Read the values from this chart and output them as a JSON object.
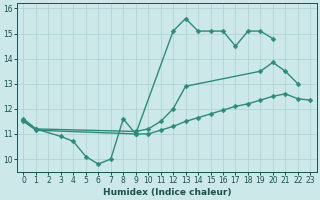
{
  "xlabel": "Humidex (Indice chaleur)",
  "line_color": "#2e8b7a",
  "bg_color": "#cce8e8",
  "grid_color": "#aad0d0",
  "ylim": [
    9.5,
    16.2
  ],
  "xlim": [
    -0.5,
    23.5
  ],
  "yticks": [
    10,
    11,
    12,
    13,
    14,
    15,
    16
  ],
  "xticks": [
    0,
    1,
    2,
    3,
    4,
    5,
    6,
    7,
    8,
    9,
    10,
    11,
    12,
    13,
    14,
    15,
    16,
    17,
    18,
    19,
    20,
    21,
    22,
    23
  ],
  "markersize": 2.5,
  "linewidth": 1.0,
  "line1_x": [
    0,
    1,
    3,
    4,
    5,
    6,
    7,
    8,
    9,
    12,
    13,
    14,
    15,
    16,
    17,
    18,
    19,
    20
  ],
  "line1_y": [
    11.6,
    11.2,
    10.9,
    10.7,
    10.1,
    9.8,
    10.0,
    11.6,
    11.0,
    15.1,
    15.6,
    15.1,
    15.1,
    15.1,
    14.5,
    15.1,
    15.1,
    14.8
  ],
  "line2_x": [
    0,
    1,
    9,
    10,
    11,
    12,
    13,
    19,
    20,
    21,
    22
  ],
  "line2_y": [
    11.55,
    11.2,
    11.1,
    11.2,
    11.5,
    12.0,
    12.9,
    13.5,
    13.85,
    13.5,
    13.0
  ],
  "line3_x": [
    0,
    1,
    9,
    10,
    11,
    12,
    13,
    14,
    15,
    16,
    17,
    18,
    19,
    20,
    21,
    22,
    23
  ],
  "line3_y": [
    11.5,
    11.15,
    11.0,
    11.0,
    11.15,
    11.3,
    11.5,
    11.65,
    11.8,
    11.95,
    12.1,
    12.2,
    12.35,
    12.5,
    12.6,
    12.4,
    12.35
  ]
}
